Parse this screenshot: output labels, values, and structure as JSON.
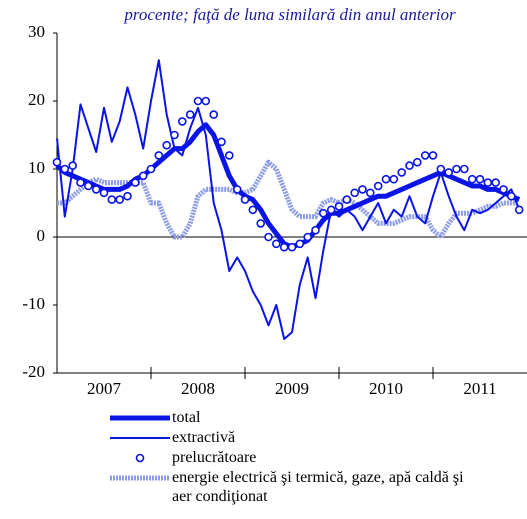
{
  "chart_data": {
    "type": "line",
    "subtitle": "procente; faţă de luna similară din anul anterior",
    "x": [
      2007,
      2007.083,
      2007.167,
      2007.25,
      2007.333,
      2007.417,
      2007.5,
      2007.583,
      2007.667,
      2007.75,
      2007.833,
      2007.917,
      2008,
      2008.083,
      2008.167,
      2008.25,
      2008.333,
      2008.417,
      2008.5,
      2008.583,
      2008.667,
      2008.75,
      2008.833,
      2008.917,
      2009,
      2009.083,
      2009.167,
      2009.25,
      2009.333,
      2009.417,
      2009.5,
      2009.583,
      2009.667,
      2009.75,
      2009.833,
      2009.917,
      2010,
      2010.083,
      2010.167,
      2010.25,
      2010.333,
      2010.417,
      2010.5,
      2010.583,
      2010.667,
      2010.75,
      2010.833,
      2010.917,
      2011,
      2011.083,
      2011.167,
      2011.25,
      2011.333,
      2011.417,
      2011.5,
      2011.583,
      2011.667,
      2011.75,
      2011.833,
      2011.917
    ],
    "xlim": [
      2007,
      2012
    ],
    "xticks": [
      {
        "value": 2007.5,
        "label": "2007"
      },
      {
        "value": 2008.5,
        "label": "2008"
      },
      {
        "value": 2009.5,
        "label": "2009"
      },
      {
        "value": 2010.5,
        "label": "2010"
      },
      {
        "value": 2011.5,
        "label": "2011"
      }
    ],
    "xbounds": [
      2008,
      2009,
      2010,
      2011
    ],
    "ylim": [
      -20,
      30
    ],
    "yticks": [
      -20,
      -10,
      0,
      10,
      20,
      30
    ],
    "series": [
      {
        "name": "total",
        "color": "#0a14e6",
        "style": "thick",
        "values": [
          10.5,
          9.5,
          9,
          8.5,
          8,
          7.5,
          7,
          7,
          7,
          7.5,
          8.5,
          9,
          10,
          11,
          12,
          13,
          13,
          14,
          15.5,
          16.5,
          15,
          12,
          9,
          7,
          6,
          5.5,
          4,
          2,
          0.5,
          -1,
          -1.5,
          -1,
          -0.5,
          1,
          2.5,
          3.5,
          3.5,
          4,
          4.5,
          5,
          5.5,
          6,
          6,
          6.5,
          7,
          7.5,
          8,
          8.5,
          9,
          9.5,
          9,
          8.5,
          8,
          7.5,
          7.5,
          7,
          7,
          6.5,
          6,
          5.5
        ]
      },
      {
        "name": "extractivă",
        "color": "#0a14e6",
        "style": "thin",
        "values": [
          14.5,
          3,
          10,
          19.5,
          16,
          12.5,
          19,
          14,
          17,
          22,
          18,
          13,
          20,
          26,
          18,
          13,
          12,
          16,
          19,
          15,
          5,
          1,
          -5,
          -3,
          -5,
          -8,
          -10,
          -13,
          -10,
          -15,
          -14,
          -7,
          -3,
          -9,
          -2,
          4,
          3,
          4,
          3,
          1,
          3,
          5,
          2,
          4,
          3,
          6,
          3,
          2,
          6,
          9.5,
          6,
          3,
          1,
          4,
          3.5,
          4,
          5,
          6,
          7,
          4
        ]
      },
      {
        "name": "prelucrătoare",
        "color": "#0a14e6",
        "style": "circles",
        "values": [
          11,
          10,
          10.5,
          8,
          7.5,
          7,
          6.5,
          5.5,
          5.5,
          6,
          8,
          9,
          10,
          12,
          13.5,
          15,
          17,
          18,
          20,
          20,
          18,
          14,
          12,
          7,
          5.5,
          4,
          2,
          0,
          -1,
          -1.5,
          -1.5,
          -1,
          0,
          1,
          3.5,
          4,
          4.5,
          5.5,
          6.5,
          7,
          6.5,
          7.5,
          8.5,
          8.5,
          9.5,
          10.5,
          11,
          12,
          12,
          10,
          9.5,
          10,
          10,
          8.5,
          8.5,
          8,
          8,
          7,
          6,
          4
        ]
      },
      {
        "name": "energie electrică şi termică, gaze, apă caldă şi aer condiţionat",
        "color": "#8d9ce6",
        "style": "hatched",
        "values": [
          5,
          5,
          6,
          7,
          8,
          8.5,
          8,
          8,
          8,
          8,
          8,
          8,
          5,
          5,
          2,
          0,
          0,
          2,
          6,
          7,
          7,
          7,
          7,
          6.5,
          6.5,
          7,
          9,
          11,
          10,
          7,
          4,
          3,
          3,
          3,
          5,
          5.5,
          5,
          5.5,
          5,
          4,
          3,
          2,
          2,
          2,
          2.5,
          3,
          3,
          3,
          1,
          0,
          2,
          3.5,
          3.5,
          3.5,
          4,
          4.5,
          4.5,
          5,
          5,
          5
        ]
      }
    ]
  }
}
